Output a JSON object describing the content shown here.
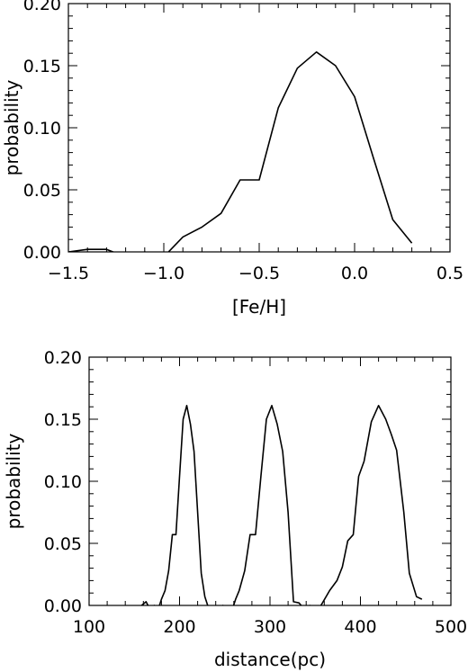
{
  "chart_data": [
    {
      "type": "line",
      "xlabel": "[Fe/H]",
      "ylabel": "probability",
      "xlim": [
        -1.5,
        0.5
      ],
      "ylim": [
        0.0,
        0.2
      ],
      "xticks": [
        -1.5,
        -1.0,
        -0.5,
        0.0,
        0.5
      ],
      "xtick_labels": [
        "−1.5",
        "−1.0",
        "−0.5",
        "0.0",
        "0.5"
      ],
      "yticks": [
        0.0,
        0.05,
        0.1,
        0.15,
        0.2
      ],
      "ytick_labels": [
        "0.00",
        "0.05",
        "0.10",
        "0.15",
        "0.20"
      ],
      "grid": false,
      "series": [
        {
          "x": [
            -1.5,
            -1.4,
            -1.3,
            -1.2,
            -1.1,
            -1.0,
            -0.9,
            -0.8,
            -0.7,
            -0.6,
            -0.5,
            -0.4,
            -0.3,
            -0.2,
            -0.1,
            0.0,
            0.1,
            0.2,
            0.3
          ],
          "values": [
            0.0,
            0.002,
            0.002,
            -0.004,
            0.0,
            -0.004,
            0.012,
            0.02,
            0.031,
            0.058,
            0.058,
            0.116,
            0.148,
            0.161,
            0.15,
            0.125,
            0.075,
            0.026,
            0.007
          ]
        }
      ]
    },
    {
      "type": "line",
      "xlabel": "distance(pc)",
      "ylabel": "probability",
      "xlim": [
        100,
        500
      ],
      "ylim": [
        0.0,
        0.2
      ],
      "xticks": [
        100,
        200,
        300,
        400,
        500
      ],
      "xtick_labels": [
        "100",
        "200",
        "300",
        "400",
        "500"
      ],
      "yticks": [
        0.0,
        0.05,
        0.1,
        0.15,
        0.2
      ],
      "ytick_labels": [
        "0.00",
        "0.05",
        "0.10",
        "0.15",
        "0.20"
      ],
      "grid": false,
      "series": [
        {
          "x": [
            158,
            163,
            168,
            172,
            176,
            180,
            184,
            188,
            192,
            196,
            200,
            204,
            208,
            212,
            216,
            220,
            224,
            228,
            232
          ],
          "values": [
            0.0,
            0.003,
            -0.004,
            0.0,
            -0.004,
            0.005,
            0.012,
            0.028,
            0.057,
            0.057,
            0.104,
            0.15,
            0.161,
            0.146,
            0.124,
            0.075,
            0.026,
            0.007,
            -0.002
          ]
        },
        {
          "x": [
            242,
            248,
            254,
            258,
            262,
            266,
            272,
            278,
            284,
            290,
            296,
            302,
            308,
            314,
            320,
            326,
            332,
            338,
            344,
            350,
            356
          ],
          "values": [
            -0.003,
            0.0,
            -0.005,
            -0.004,
            0.005,
            0.012,
            0.028,
            0.057,
            0.057,
            0.104,
            0.15,
            0.161,
            0.146,
            0.124,
            0.075,
            0.003,
            0.002,
            -0.003,
            0.0,
            -0.005,
            -0.005
          ]
        },
        {
          "x": [
            352,
            358,
            366,
            374,
            380,
            386,
            392,
            398,
            404,
            412,
            420,
            428,
            434,
            440,
            448,
            454,
            462,
            468
          ],
          "values": [
            -0.005,
            0.002,
            0.012,
            0.02,
            0.031,
            0.052,
            0.057,
            0.104,
            0.116,
            0.148,
            0.161,
            0.15,
            0.138,
            0.125,
            0.075,
            0.026,
            0.007,
            0.005
          ]
        }
      ]
    }
  ]
}
